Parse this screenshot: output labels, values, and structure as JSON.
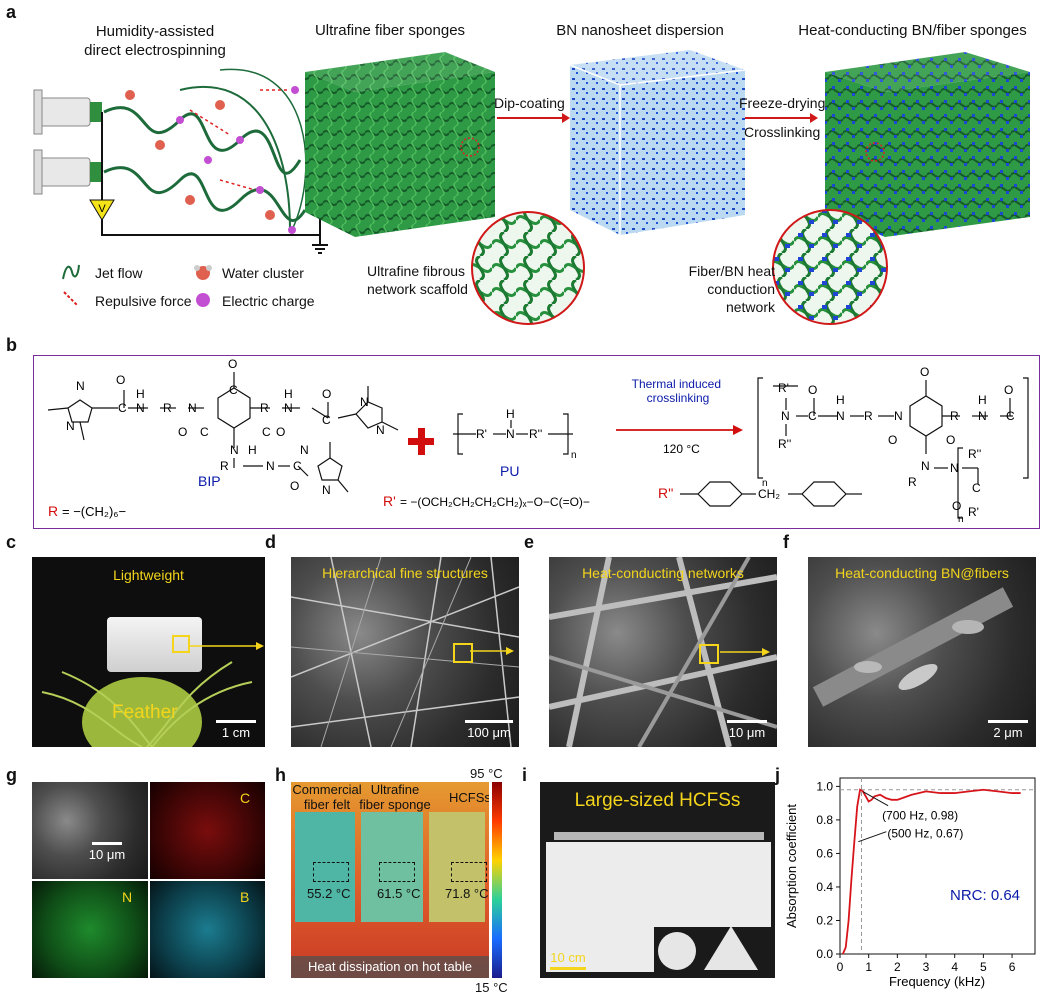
{
  "panel_labels": {
    "a": "a",
    "b": "b",
    "c": "c",
    "d": "d",
    "e": "e",
    "f": "f",
    "g": "g",
    "h": "h",
    "i": "i",
    "j": "j"
  },
  "panel_a": {
    "title_electrospin": "Humidity-assisted\ndirect electrospinning",
    "title_sponge": "Ultrafine fiber sponges",
    "title_dispersion": "BN nanosheet dispersion",
    "title_hcfs": "Heat-conducting BN/fiber sponges",
    "dip_coating": "Dip-coating",
    "freeze_drying": "Freeze-drying",
    "crosslinking": "Crosslinking",
    "voltage": "V",
    "legend_jet": "Jet flow",
    "legend_water": "Water cluster",
    "legend_repulsive": "Repulsive force",
    "legend_charge": "Electric charge",
    "scaffold_label": "Ultrafine fibrous\nnetwork scaffold",
    "network_label": "Fiber/BN heat\nconduction network"
  },
  "panel_b": {
    "bip": "BIP",
    "pu": "PU",
    "thermal": "Thermal induced\ncrosslinking",
    "temp": "120 °C",
    "r_def_R": "R",
    "r_def": "= −(CH₂)₆−",
    "r1_def_label": "R'",
    "r1_def": "= −(OCH₂CH₂CH₂CH₂)ₓ−O−C(=O)−",
    "r2_def_label": "R''",
    "pu_unit": "−R'−N(H)−R''−",
    "n": "n",
    "x": "x",
    "o": "O",
    "n_atom": "N",
    "h_atom": "H",
    "c_atom": "C",
    "r_atom": "R",
    "r1_atom": "R'",
    "r2_atom": "R''",
    "ch2": "CH₂"
  },
  "panel_c": {
    "title": "Lightweight",
    "feather": "Feather",
    "scale": "1 cm"
  },
  "panel_d": {
    "title": "Hierarchical fine structures",
    "scale": "100 μm"
  },
  "panel_e": {
    "title": "Heat-conducting networks",
    "scale": "10 μm"
  },
  "panel_f": {
    "title": "Heat-conducting BN@fibers",
    "scale": "2 μm"
  },
  "panel_g": {
    "scale": "10 μm",
    "c": "C",
    "n": "N",
    "b": "B"
  },
  "panel_h": {
    "max_temp": "95 °C",
    "min_temp": "15 °C",
    "label1": "Commercial\nfiber felt",
    "label2": "Ultrafine\nfiber sponge",
    "label3": "HCFSs",
    "t1": "55.2 °C",
    "t2": "61.5 °C",
    "t3": "71.8 °C",
    "footer": "Heat dissipation on hot table"
  },
  "panel_i": {
    "title": "Large-sized HCFSs",
    "scale": "10 cm"
  },
  "chart_data": {
    "type": "line",
    "xlabel": "Frequency (kHz)",
    "ylabel": "Absorption coefficient",
    "xlim": [
      0,
      6.8
    ],
    "ylim": [
      0,
      1.05
    ],
    "xticks": [
      0,
      1,
      2,
      3,
      4,
      5,
      6
    ],
    "yticks": [
      0.0,
      0.2,
      0.4,
      0.6,
      0.8,
      1.0
    ],
    "ytick_labels": [
      "0.0",
      "0.2",
      "0.4",
      "0.6",
      "0.8",
      "1.0"
    ],
    "series": [
      {
        "color": "#d8141b",
        "x": [
          0.1,
          0.2,
          0.3,
          0.4,
          0.5,
          0.6,
          0.7,
          0.8,
          0.9,
          1.0,
          1.1,
          1.2,
          1.4,
          1.6,
          1.8,
          2.0,
          2.5,
          3.0,
          3.5,
          4.0,
          4.5,
          5.0,
          5.5,
          6.0,
          6.3
        ],
        "y": [
          0.0,
          0.04,
          0.2,
          0.45,
          0.67,
          0.88,
          0.98,
          0.97,
          0.94,
          0.91,
          0.92,
          0.94,
          0.95,
          0.93,
          0.92,
          0.92,
          0.95,
          0.97,
          0.96,
          0.96,
          0.97,
          0.98,
          0.97,
          0.96,
          0.96
        ]
      }
    ],
    "ref_h": 0.98,
    "ref_v": 0.75,
    "annotations": [
      {
        "text": "(700 Hz, 0.98)",
        "x": 0.7,
        "y": 0.98
      },
      {
        "text": "(500 Hz, 0.67)",
        "x": 0.5,
        "y": 0.67
      }
    ],
    "nrc": "NRC: 0.64"
  }
}
